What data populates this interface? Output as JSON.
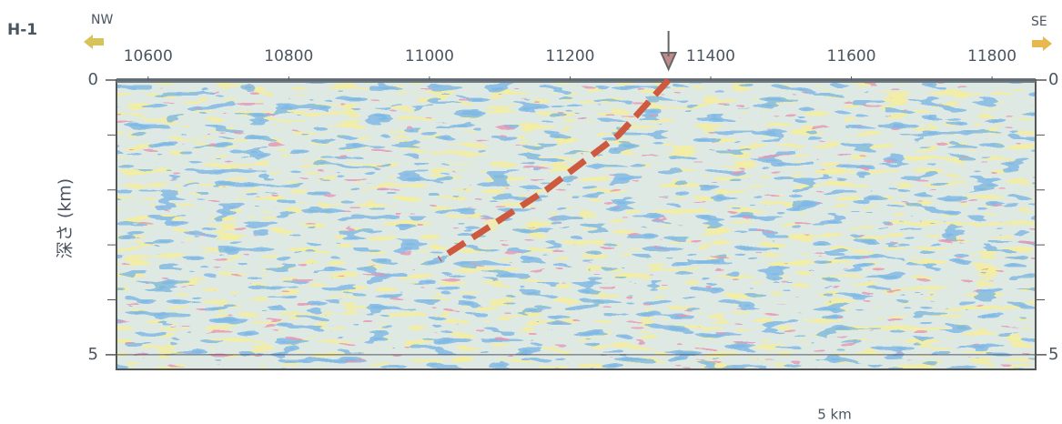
{
  "chart_data": {
    "type": "seismic-section",
    "label": "H-1",
    "left_direction": "NW",
    "right_direction": "SE",
    "y_label": "深さ (km)",
    "scale_label": "5 km",
    "xlim": [
      10555,
      11862
    ],
    "xticks": [
      10600,
      10800,
      11000,
      11200,
      11400,
      11600,
      11800
    ],
    "ylim": [
      0,
      5.3
    ],
    "yticks": [
      0,
      5
    ],
    "minor_yticks": [
      1,
      2,
      3,
      4
    ],
    "marker_x": 11340,
    "fault": {
      "color": "#cd5a3f",
      "x": [
        11340,
        11269,
        11166,
        11014
      ],
      "values": [
        0,
        1.0,
        2.0,
        3.26
      ]
    }
  }
}
